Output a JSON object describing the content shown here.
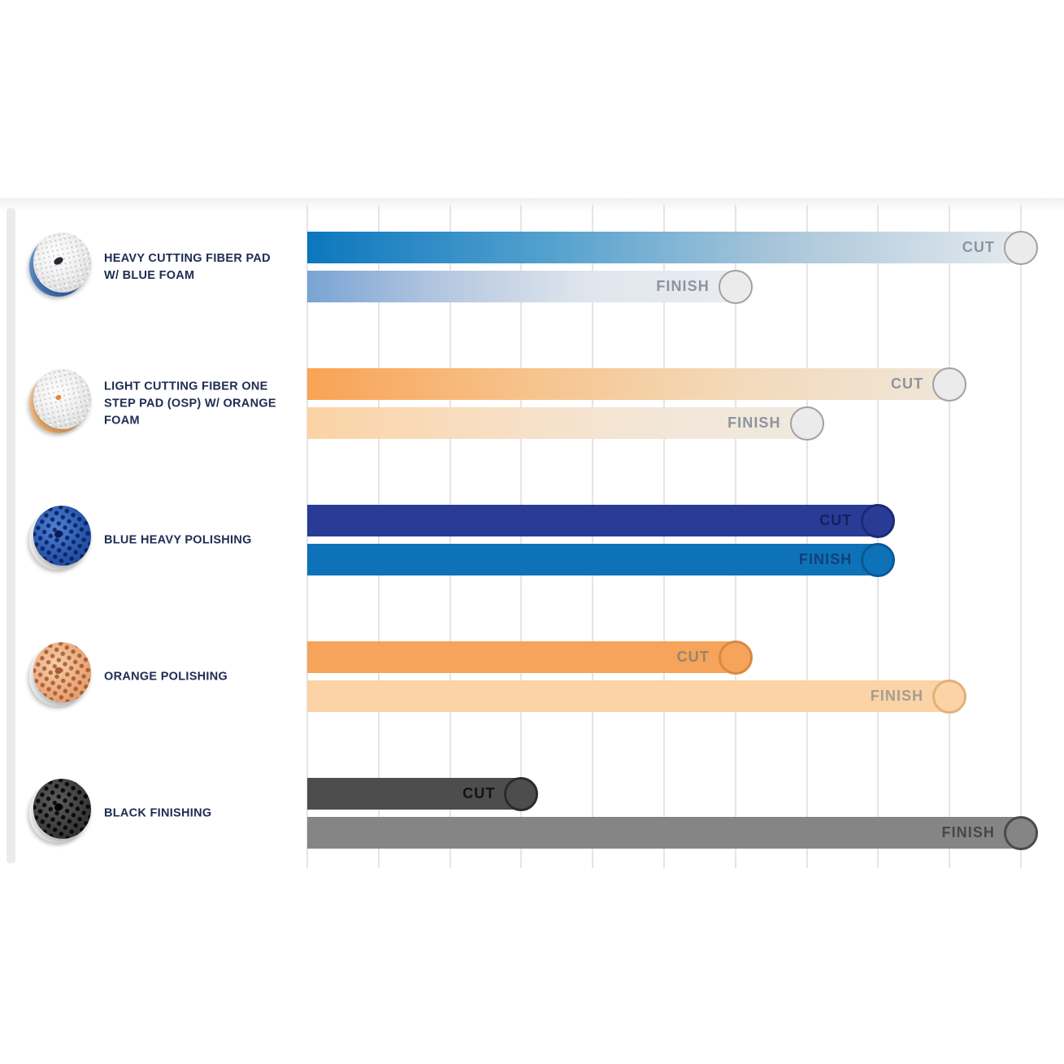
{
  "page": {
    "background": "#ffffff"
  },
  "chart_data": {
    "type": "bar",
    "orientation": "horizontal",
    "title": "",
    "x_axis": {
      "min": 0,
      "max": 10,
      "gridline_interval": 1,
      "tick_labels_visible": false,
      "grid": true
    },
    "legend_position": "none",
    "cut_label": "CUT",
    "finish_label": "FINISH",
    "pads": [
      {
        "label": "HEAVY CUTTING FIBER PAD W/ BLUE FOAM",
        "icon": "fiber-pad-blue-foam-icon",
        "variant": "fiber-blue",
        "cut": 10,
        "finish": 6,
        "colors": {
          "cut_bar": [
            "#0c77bd",
            "#52a0ce",
            "#a9c6da",
            "#e3e9ee"
          ],
          "finish_bar": [
            "#79a4d4",
            "#b7c9e0",
            "#e0e6ed",
            "#e9ecf1"
          ],
          "cut_text": "#8d949d",
          "finish_text": "#8d949d",
          "cut_circle_fill": "#ebebeb",
          "cut_circle_border": "#a1a1a1",
          "finish_circle_fill": "#ebebeb",
          "finish_circle_border": "#a1a1a1"
        }
      },
      {
        "label": "LIGHT CUTTING FIBER ONE STEP PAD (OSP) W/ ORANGE FOAM",
        "icon": "fiber-pad-orange-foam-icon",
        "variant": "fiber-orange",
        "cut": 9,
        "finish": 7,
        "colors": {
          "cut_bar": [
            "#f9a355",
            "#f7c28a",
            "#f3d9b9",
            "#f0e6d8"
          ],
          "finish_bar": [
            "#fbd3a5",
            "#f8ddc0",
            "#f3e6d6",
            "#f0e9df"
          ],
          "cut_text": "#8d949d",
          "finish_text": "#8d949d",
          "cut_circle_fill": "#ebebeb",
          "cut_circle_border": "#a1a1a1",
          "finish_circle_fill": "#ebebeb",
          "finish_circle_border": "#a1a1a1"
        }
      },
      {
        "label": "BLUE HEAVY POLISHING",
        "icon": "blue-foam-pad-icon",
        "variant": "foam-blue",
        "cut": 8,
        "finish": 8,
        "colors": {
          "cut_bar": [
            "#2a3b96"
          ],
          "finish_bar": [
            "#0e72b8"
          ],
          "cut_text": "#151f5e",
          "finish_text": "#123f7a",
          "cut_circle_fill": "#2a3b96",
          "cut_circle_border": "#1a2a77",
          "finish_circle_fill": "#0e72b8",
          "finish_circle_border": "#0a5897"
        }
      },
      {
        "label": "ORANGE POLISHING",
        "icon": "orange-foam-pad-icon",
        "variant": "foam-orange",
        "cut": 6,
        "finish": 9,
        "colors": {
          "cut_bar": [
            "#f6a45b"
          ],
          "finish_bar": [
            "#fbd3a6"
          ],
          "cut_text": "#9a8466",
          "finish_text": "#a59d92",
          "cut_circle_fill": "#f6a45b",
          "cut_circle_border": "#d8893f",
          "finish_circle_fill": "#fbd3a6",
          "finish_circle_border": "#e3b078"
        }
      },
      {
        "label": "BLACK FINISHING",
        "icon": "black-foam-pad-icon",
        "variant": "foam-black",
        "cut": 3,
        "finish": 10,
        "colors": {
          "cut_bar": [
            "#4d4d4d"
          ],
          "finish_bar": [
            "#858585"
          ],
          "cut_text": "#121212",
          "finish_text": "#474747",
          "cut_circle_fill": "#4d4d4d",
          "cut_circle_border": "#2b2b2b",
          "finish_circle_fill": "#858585",
          "finish_circle_border": "#4b4b4b"
        }
      }
    ]
  }
}
